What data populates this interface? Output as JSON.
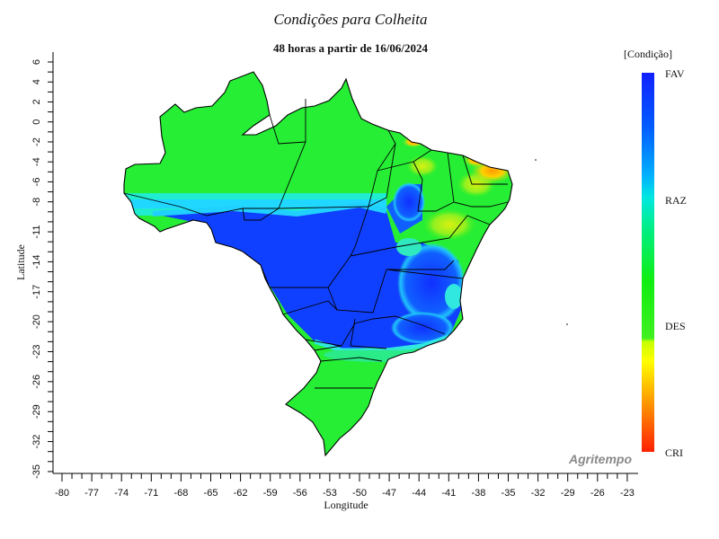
{
  "title": "Condições para Colheita",
  "subtitle": "48 horas a partir de 16/06/2024",
  "legend": {
    "title": "[Condição]",
    "labels": [
      "FAV",
      "RAZ",
      "DES",
      "CRI"
    ]
  },
  "axes": {
    "xlabel": "Longitude",
    "ylabel": "Latitude",
    "x_ticks": [
      "-80",
      "-77",
      "-74",
      "-71",
      "-68",
      "-65",
      "-62",
      "-59",
      "-56",
      "-53",
      "-50",
      "-47",
      "-44",
      "-41",
      "-38",
      "-35",
      "-32",
      "-29",
      "-26",
      "-23"
    ],
    "y_ticks": [
      "6",
      "4",
      "2",
      "0",
      "-2",
      "-4",
      "-6",
      "-8",
      "-11",
      "-14",
      "-17",
      "-20",
      "-23",
      "-26",
      "-29",
      "-32",
      "-35"
    ]
  },
  "credit": "Agritempo"
}
